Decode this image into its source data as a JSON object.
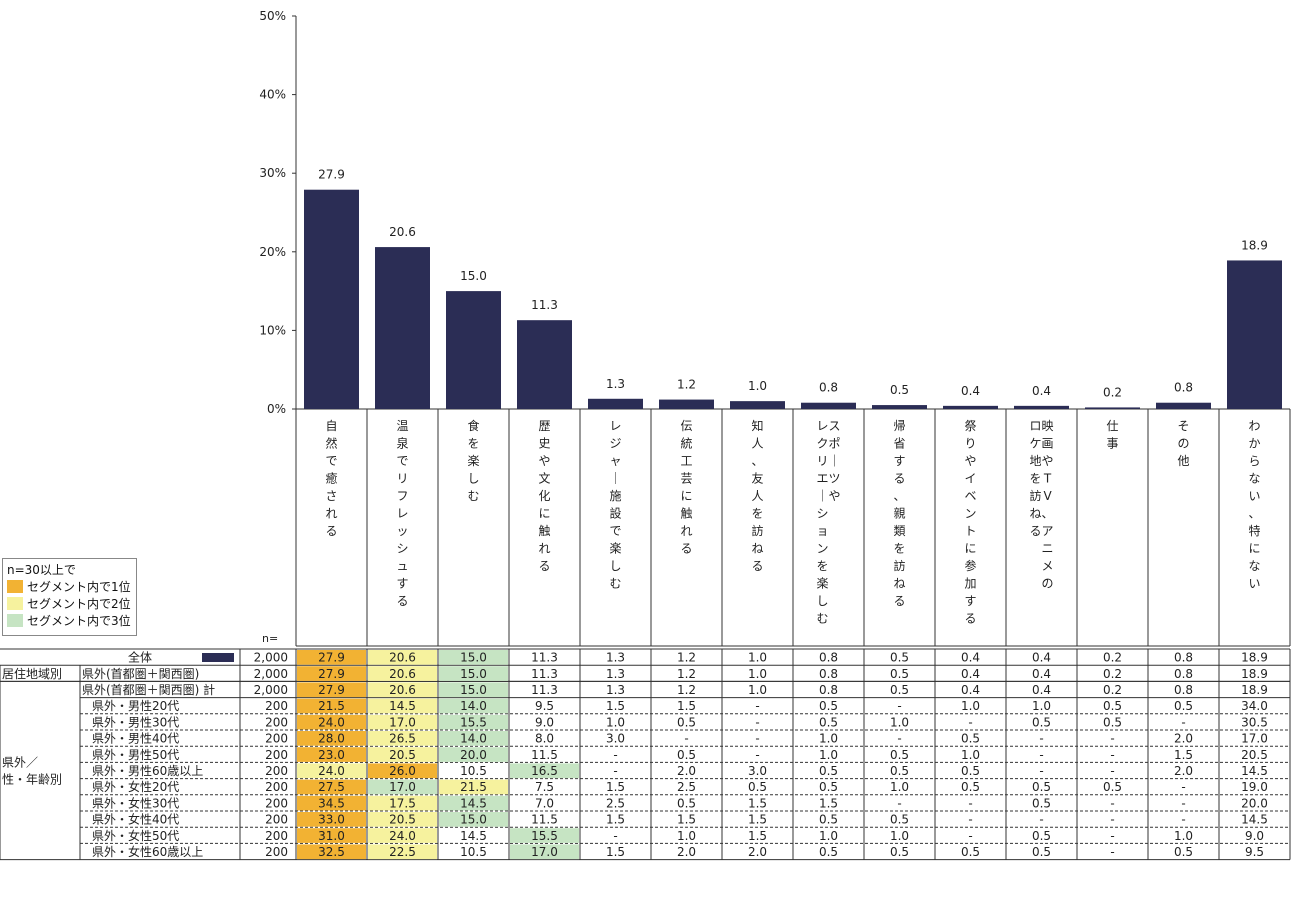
{
  "chart_data": {
    "type": "bar",
    "yaxis": {
      "ticks": [
        "0%",
        "10%",
        "20%",
        "30%",
        "40%",
        "50%"
      ],
      "ylim": [
        0,
        50
      ]
    },
    "n_label": "n=",
    "categories": [
      "自然で癒される",
      "温泉でリフレッシュする",
      "食を楽しむ",
      "歴史や文化に触れる",
      "レジャー施設で楽しむ",
      "伝統工芸に触れる",
      "知人、友人を訪ねる",
      "スポーツやレクリエーションを楽しむ",
      "帰省する、親類を訪ねる",
      "祭りやイベントに参加する",
      "映画やTV、アニメのロケ地を訪ねる",
      "仕事",
      "その他",
      "わからない、特にない"
    ],
    "category_columns": [
      [
        "自然で癒される"
      ],
      [
        "温泉でリフレッシュする"
      ],
      [
        "食を楽しむ"
      ],
      [
        "歴史や文化に触れる"
      ],
      [
        "レジャー施設で楽しむ"
      ],
      [
        "伝統工芸に触れる"
      ],
      [
        "知人、友人を訪ねる"
      ],
      [
        "スポーツや",
        "レクリエーションを楽しむ"
      ],
      [
        "帰省する、親類を訪ねる"
      ],
      [
        "祭りやイベントに参加する"
      ],
      [
        "映画やTV、アニメの",
        "ロケ地を訪ねる"
      ],
      [
        "仕事"
      ],
      [
        "その他"
      ],
      [
        "わからない、特にない"
      ]
    ],
    "values": [
      27.9,
      20.6,
      15.0,
      11.3,
      1.3,
      1.2,
      1.0,
      0.8,
      0.5,
      0.4,
      0.4,
      0.2,
      0.8,
      18.9
    ],
    "value_labels": [
      "27.9",
      "20.6",
      "15.0",
      "11.3",
      "1.3",
      "1.2",
      "1.0",
      "0.8",
      "0.5",
      "0.4",
      "0.4",
      "0.2",
      "0.8",
      "18.9"
    ],
    "colors": {
      "bar": "#2b2d55",
      "rank1": "#f2b233",
      "rank2": "#f6f29e",
      "rank3": "#c6e4c3"
    },
    "legend": {
      "title": "n=30以上で",
      "items": [
        "セグメント内で1位",
        "セグメント内で2位",
        "セグメント内で3位"
      ]
    },
    "table": {
      "rows": [
        {
          "group": "",
          "label": "全体",
          "n": "2,000",
          "values": [
            "27.9",
            "20.6",
            "15.0",
            "11.3",
            "1.3",
            "1.2",
            "1.0",
            "0.8",
            "0.5",
            "0.4",
            "0.4",
            "0.2",
            "0.8",
            "18.9"
          ],
          "ranks": {
            "0": 1,
            "1": 2,
            "2": 3
          }
        },
        {
          "group": "居住地域別",
          "label": "県外(首都圏＋関西圏)",
          "n": "2,000",
          "values": [
            "27.9",
            "20.6",
            "15.0",
            "11.3",
            "1.3",
            "1.2",
            "1.0",
            "0.8",
            "0.5",
            "0.4",
            "0.4",
            "0.2",
            "0.8",
            "18.9"
          ],
          "ranks": {
            "0": 1,
            "1": 2,
            "2": 3
          }
        },
        {
          "group": "",
          "label": "県外(首都圏＋関西圏) 計",
          "n": "2,000",
          "values": [
            "27.9",
            "20.6",
            "15.0",
            "11.3",
            "1.3",
            "1.2",
            "1.0",
            "0.8",
            "0.5",
            "0.4",
            "0.4",
            "0.2",
            "0.8",
            "18.9"
          ],
          "ranks": {
            "0": 1,
            "1": 2,
            "2": 3
          }
        },
        {
          "group": "",
          "label": "県外・男性20代",
          "n": "200",
          "values": [
            "21.5",
            "14.5",
            "14.0",
            "9.5",
            "1.5",
            "1.5",
            "-",
            "0.5",
            "-",
            "1.0",
            "1.0",
            "0.5",
            "0.5",
            "34.0"
          ],
          "ranks": {
            "0": 1,
            "1": 2,
            "2": 3
          }
        },
        {
          "group": "",
          "label": "県外・男性30代",
          "n": "200",
          "values": [
            "24.0",
            "17.0",
            "15.5",
            "9.0",
            "1.0",
            "0.5",
            "-",
            "0.5",
            "1.0",
            "-",
            "0.5",
            "0.5",
            "-",
            "30.5"
          ],
          "ranks": {
            "0": 1,
            "1": 2,
            "2": 3
          }
        },
        {
          "group": "",
          "label": "県外・男性40代",
          "n": "200",
          "values": [
            "28.0",
            "26.5",
            "14.0",
            "8.0",
            "3.0",
            "-",
            "-",
            "1.0",
            "-",
            "0.5",
            "-",
            "-",
            "2.0",
            "17.0"
          ],
          "ranks": {
            "0": 1,
            "1": 2,
            "2": 3
          }
        },
        {
          "group": "",
          "label": "県外・男性50代",
          "n": "200",
          "values": [
            "23.0",
            "20.5",
            "20.0",
            "11.5",
            "-",
            "0.5",
            "-",
            "1.0",
            "0.5",
            "1.0",
            "-",
            "-",
            "1.5",
            "20.5"
          ],
          "ranks": {
            "0": 1,
            "1": 2,
            "2": 3
          }
        },
        {
          "group": "",
          "label": "県外・男性60歳以上",
          "n": "200",
          "values": [
            "24.0",
            "26.0",
            "10.5",
            "16.5",
            "-",
            "2.0",
            "3.0",
            "0.5",
            "0.5",
            "0.5",
            "-",
            "-",
            "2.0",
            "14.5"
          ],
          "ranks": {
            "0": 2,
            "1": 1,
            "3": 3
          }
        },
        {
          "group": "",
          "label": "県外・女性20代",
          "n": "200",
          "values": [
            "27.5",
            "17.0",
            "21.5",
            "7.5",
            "1.5",
            "2.5",
            "0.5",
            "0.5",
            "1.0",
            "0.5",
            "0.5",
            "0.5",
            "-",
            "19.0"
          ],
          "ranks": {
            "0": 1,
            "1": 3,
            "2": 2
          }
        },
        {
          "group": "",
          "label": "県外・女性30代",
          "n": "200",
          "values": [
            "34.5",
            "17.5",
            "14.5",
            "7.0",
            "2.5",
            "0.5",
            "1.5",
            "1.5",
            "-",
            "-",
            "0.5",
            "-",
            "-",
            "20.0"
          ],
          "ranks": {
            "0": 1,
            "1": 2,
            "2": 3
          }
        },
        {
          "group": "",
          "label": "県外・女性40代",
          "n": "200",
          "values": [
            "33.0",
            "20.5",
            "15.0",
            "11.5",
            "1.5",
            "1.5",
            "1.5",
            "0.5",
            "0.5",
            "-",
            "-",
            "-",
            "-",
            "14.5"
          ],
          "ranks": {
            "0": 1,
            "1": 2,
            "2": 3
          }
        },
        {
          "group": "",
          "label": "県外・女性50代",
          "n": "200",
          "values": [
            "31.0",
            "24.0",
            "14.5",
            "15.5",
            "-",
            "1.0",
            "1.5",
            "1.0",
            "1.0",
            "-",
            "0.5",
            "-",
            "1.0",
            "9.0"
          ],
          "ranks": {
            "0": 1,
            "1": 2,
            "3": 3
          }
        },
        {
          "group": "",
          "label": "県外・女性60歳以上",
          "n": "200",
          "values": [
            "32.5",
            "22.5",
            "10.5",
            "17.0",
            "1.5",
            "2.0",
            "2.0",
            "0.5",
            "0.5",
            "0.5",
            "0.5",
            "-",
            "0.5",
            "9.5"
          ],
          "ranks": {
            "0": 1,
            "1": 2,
            "3": 3
          }
        }
      ],
      "side_group_label": [
        "県外／",
        "性・年齢別"
      ]
    }
  }
}
